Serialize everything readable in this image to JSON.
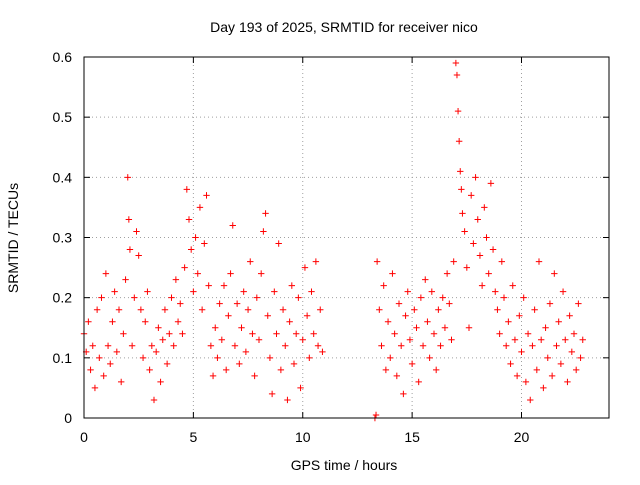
{
  "chart_data": {
    "type": "scatter",
    "title": "Day 193 of 2025, SRMTID for receiver nico",
    "xlabel": "GPS time / hours",
    "ylabel": "SRMTID / TECUs",
    "xlim": [
      0,
      24
    ],
    "ylim": [
      0,
      0.6
    ],
    "x_ticks": [
      0,
      5,
      10,
      15,
      20
    ],
    "x_tick_labels": [
      "0",
      "5",
      "10",
      "15",
      "20"
    ],
    "y_ticks": [
      0,
      0.1,
      0.2,
      0.3,
      0.4,
      0.5,
      0.6
    ],
    "y_tick_labels": [
      "0",
      "0.1",
      "0.2",
      "0.3",
      "0.4",
      "0.5",
      "0.6"
    ],
    "grid": true,
    "legend": "none",
    "marker": "plus",
    "color": "#ff0000",
    "series": [
      {
        "name": "SRMTID",
        "points": [
          [
            0.0,
            0.14
          ],
          [
            0.1,
            0.11
          ],
          [
            0.2,
            0.16
          ],
          [
            0.3,
            0.08
          ],
          [
            0.4,
            0.12
          ],
          [
            0.5,
            0.05
          ],
          [
            0.6,
            0.18
          ],
          [
            0.7,
            0.1
          ],
          [
            0.8,
            0.2
          ],
          [
            0.9,
            0.07
          ],
          [
            1.0,
            0.24
          ],
          [
            1.1,
            0.12
          ],
          [
            1.2,
            0.09
          ],
          [
            1.3,
            0.16
          ],
          [
            1.4,
            0.21
          ],
          [
            1.5,
            0.11
          ],
          [
            1.6,
            0.18
          ],
          [
            1.7,
            0.06
          ],
          [
            1.8,
            0.14
          ],
          [
            1.9,
            0.23
          ],
          [
            2.0,
            0.4
          ],
          [
            2.05,
            0.33
          ],
          [
            2.1,
            0.28
          ],
          [
            2.2,
            0.12
          ],
          [
            2.3,
            0.2
          ],
          [
            2.4,
            0.31
          ],
          [
            2.5,
            0.27
          ],
          [
            2.6,
            0.18
          ],
          [
            2.7,
            0.1
          ],
          [
            2.8,
            0.16
          ],
          [
            2.9,
            0.21
          ],
          [
            3.0,
            0.08
          ],
          [
            3.1,
            0.12
          ],
          [
            3.2,
            0.03
          ],
          [
            3.3,
            0.11
          ],
          [
            3.4,
            0.15
          ],
          [
            3.5,
            0.06
          ],
          [
            3.6,
            0.13
          ],
          [
            3.7,
            0.18
          ],
          [
            3.8,
            0.09
          ],
          [
            3.9,
            0.14
          ],
          [
            4.0,
            0.2
          ],
          [
            4.1,
            0.12
          ],
          [
            4.2,
            0.23
          ],
          [
            4.3,
            0.16
          ],
          [
            4.4,
            0.19
          ],
          [
            4.5,
            0.14
          ],
          [
            4.6,
            0.25
          ],
          [
            4.7,
            0.38
          ],
          [
            4.8,
            0.33
          ],
          [
            4.9,
            0.28
          ],
          [
            5.0,
            0.21
          ],
          [
            5.1,
            0.3
          ],
          [
            5.2,
            0.24
          ],
          [
            5.3,
            0.35
          ],
          [
            5.4,
            0.18
          ],
          [
            5.5,
            0.29
          ],
          [
            5.6,
            0.37
          ],
          [
            5.7,
            0.22
          ],
          [
            5.8,
            0.12
          ],
          [
            5.9,
            0.07
          ],
          [
            6.0,
            0.15
          ],
          [
            6.1,
            0.1
          ],
          [
            6.2,
            0.19
          ],
          [
            6.3,
            0.13
          ],
          [
            6.4,
            0.22
          ],
          [
            6.5,
            0.08
          ],
          [
            6.6,
            0.17
          ],
          [
            6.7,
            0.24
          ],
          [
            6.8,
            0.32
          ],
          [
            6.9,
            0.12
          ],
          [
            7.0,
            0.19
          ],
          [
            7.1,
            0.09
          ],
          [
            7.2,
            0.15
          ],
          [
            7.3,
            0.21
          ],
          [
            7.4,
            0.11
          ],
          [
            7.5,
            0.18
          ],
          [
            7.6,
            0.26
          ],
          [
            7.7,
            0.14
          ],
          [
            7.8,
            0.07
          ],
          [
            7.9,
            0.2
          ],
          [
            8.0,
            0.13
          ],
          [
            8.1,
            0.24
          ],
          [
            8.2,
            0.31
          ],
          [
            8.3,
            0.34
          ],
          [
            8.4,
            0.17
          ],
          [
            8.5,
            0.1
          ],
          [
            8.6,
            0.04
          ],
          [
            8.7,
            0.21
          ],
          [
            8.8,
            0.14
          ],
          [
            8.9,
            0.29
          ],
          [
            9.0,
            0.08
          ],
          [
            9.1,
            0.18
          ],
          [
            9.2,
            0.12
          ],
          [
            9.3,
            0.03
          ],
          [
            9.4,
            0.16
          ],
          [
            9.5,
            0.22
          ],
          [
            9.6,
            0.09
          ],
          [
            9.7,
            0.14
          ],
          [
            9.8,
            0.2
          ],
          [
            9.9,
            0.05
          ],
          [
            10.0,
            0.13
          ],
          [
            10.1,
            0.25
          ],
          [
            10.2,
            0.17
          ],
          [
            10.3,
            0.1
          ],
          [
            10.4,
            0.21
          ],
          [
            10.5,
            0.14
          ],
          [
            10.6,
            0.26
          ],
          [
            10.7,
            0.12
          ],
          [
            10.8,
            0.18
          ],
          [
            10.9,
            0.11
          ],
          [
            13.3,
            0.0
          ],
          [
            13.35,
            0.005
          ],
          [
            13.4,
            0.26
          ],
          [
            13.5,
            0.18
          ],
          [
            13.6,
            0.12
          ],
          [
            13.7,
            0.22
          ],
          [
            13.8,
            0.08
          ],
          [
            13.9,
            0.16
          ],
          [
            14.0,
            0.1
          ],
          [
            14.1,
            0.24
          ],
          [
            14.2,
            0.14
          ],
          [
            14.3,
            0.07
          ],
          [
            14.4,
            0.19
          ],
          [
            14.5,
            0.12
          ],
          [
            14.6,
            0.04
          ],
          [
            14.7,
            0.17
          ],
          [
            14.8,
            0.21
          ],
          [
            14.9,
            0.13
          ],
          [
            15.0,
            0.09
          ],
          [
            15.1,
            0.18
          ],
          [
            15.2,
            0.15
          ],
          [
            15.3,
            0.06
          ],
          [
            15.4,
            0.2
          ],
          [
            15.5,
            0.12
          ],
          [
            15.6,
            0.23
          ],
          [
            15.7,
            0.16
          ],
          [
            15.8,
            0.1
          ],
          [
            15.9,
            0.21
          ],
          [
            16.0,
            0.14
          ],
          [
            16.1,
            0.08
          ],
          [
            16.2,
            0.18
          ],
          [
            16.3,
            0.12
          ],
          [
            16.4,
            0.2
          ],
          [
            16.5,
            0.15
          ],
          [
            16.6,
            0.24
          ],
          [
            16.7,
            0.19
          ],
          [
            16.8,
            0.13
          ],
          [
            16.9,
            0.26
          ],
          [
            17.0,
            0.59
          ],
          [
            17.05,
            0.57
          ],
          [
            17.1,
            0.51
          ],
          [
            17.15,
            0.46
          ],
          [
            17.2,
            0.41
          ],
          [
            17.25,
            0.38
          ],
          [
            17.3,
            0.34
          ],
          [
            17.4,
            0.31
          ],
          [
            17.5,
            0.25
          ],
          [
            17.6,
            0.15
          ],
          [
            17.7,
            0.37
          ],
          [
            17.8,
            0.29
          ],
          [
            17.9,
            0.4
          ],
          [
            18.0,
            0.33
          ],
          [
            18.1,
            0.27
          ],
          [
            18.2,
            0.22
          ],
          [
            18.3,
            0.35
          ],
          [
            18.4,
            0.3
          ],
          [
            18.5,
            0.24
          ],
          [
            18.6,
            0.39
          ],
          [
            18.7,
            0.28
          ],
          [
            18.8,
            0.21
          ],
          [
            18.9,
            0.18
          ],
          [
            19.0,
            0.14
          ],
          [
            19.1,
            0.26
          ],
          [
            19.2,
            0.2
          ],
          [
            19.3,
            0.12
          ],
          [
            19.4,
            0.16
          ],
          [
            19.5,
            0.09
          ],
          [
            19.6,
            0.22
          ],
          [
            19.7,
            0.13
          ],
          [
            19.8,
            0.07
          ],
          [
            19.9,
            0.17
          ],
          [
            20.0,
            0.11
          ],
          [
            20.1,
            0.2
          ],
          [
            20.2,
            0.06
          ],
          [
            20.3,
            0.14
          ],
          [
            20.4,
            0.03
          ],
          [
            20.5,
            0.12
          ],
          [
            20.6,
            0.18
          ],
          [
            20.7,
            0.08
          ],
          [
            20.8,
            0.26
          ],
          [
            20.9,
            0.13
          ],
          [
            21.0,
            0.05
          ],
          [
            21.1,
            0.15
          ],
          [
            21.2,
            0.1
          ],
          [
            21.3,
            0.19
          ],
          [
            21.4,
            0.07
          ],
          [
            21.5,
            0.24
          ],
          [
            21.6,
            0.12
          ],
          [
            21.7,
            0.16
          ],
          [
            21.8,
            0.09
          ],
          [
            21.9,
            0.21
          ],
          [
            22.0,
            0.13
          ],
          [
            22.1,
            0.06
          ],
          [
            22.2,
            0.17
          ],
          [
            22.3,
            0.11
          ],
          [
            22.4,
            0.14
          ],
          [
            22.5,
            0.08
          ],
          [
            22.6,
            0.19
          ],
          [
            22.7,
            0.1
          ],
          [
            22.8,
            0.13
          ]
        ]
      }
    ]
  }
}
